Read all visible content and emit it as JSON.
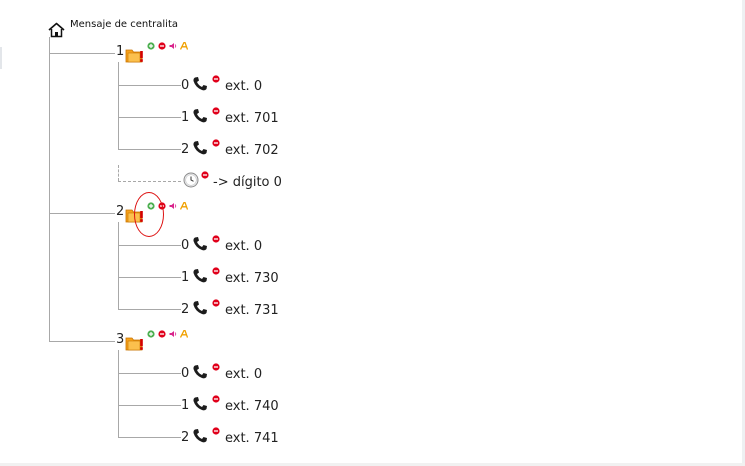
{
  "root": {
    "label": "Mensaje de centralita",
    "icon": "home-icon"
  },
  "menus": [
    {
      "number": "1",
      "options": [
        {
          "key": "0",
          "target": "ext. 0"
        },
        {
          "key": "1",
          "target": "ext. 701"
        },
        {
          "key": "2",
          "target": "ext. 702"
        }
      ],
      "timeout": {
        "target": "-> dígito 0"
      }
    },
    {
      "number": "2",
      "options": [
        {
          "key": "0",
          "target": "ext. 0"
        },
        {
          "key": "1",
          "target": "ext. 730"
        },
        {
          "key": "2",
          "target": "ext. 731"
        }
      ]
    },
    {
      "number": "3",
      "options": [
        {
          "key": "0",
          "target": "ext. 0"
        },
        {
          "key": "1",
          "target": "ext. 740"
        },
        {
          "key": "2",
          "target": "ext. 741"
        }
      ]
    }
  ],
  "colors": {
    "tree_line": "#a8a8a8",
    "add": "#4caf50",
    "delete": "#e0001b",
    "audio": "#d9258c",
    "text_edit": "#f0a000",
    "folder": "#f7a21b",
    "highlight": "#dd1111"
  }
}
